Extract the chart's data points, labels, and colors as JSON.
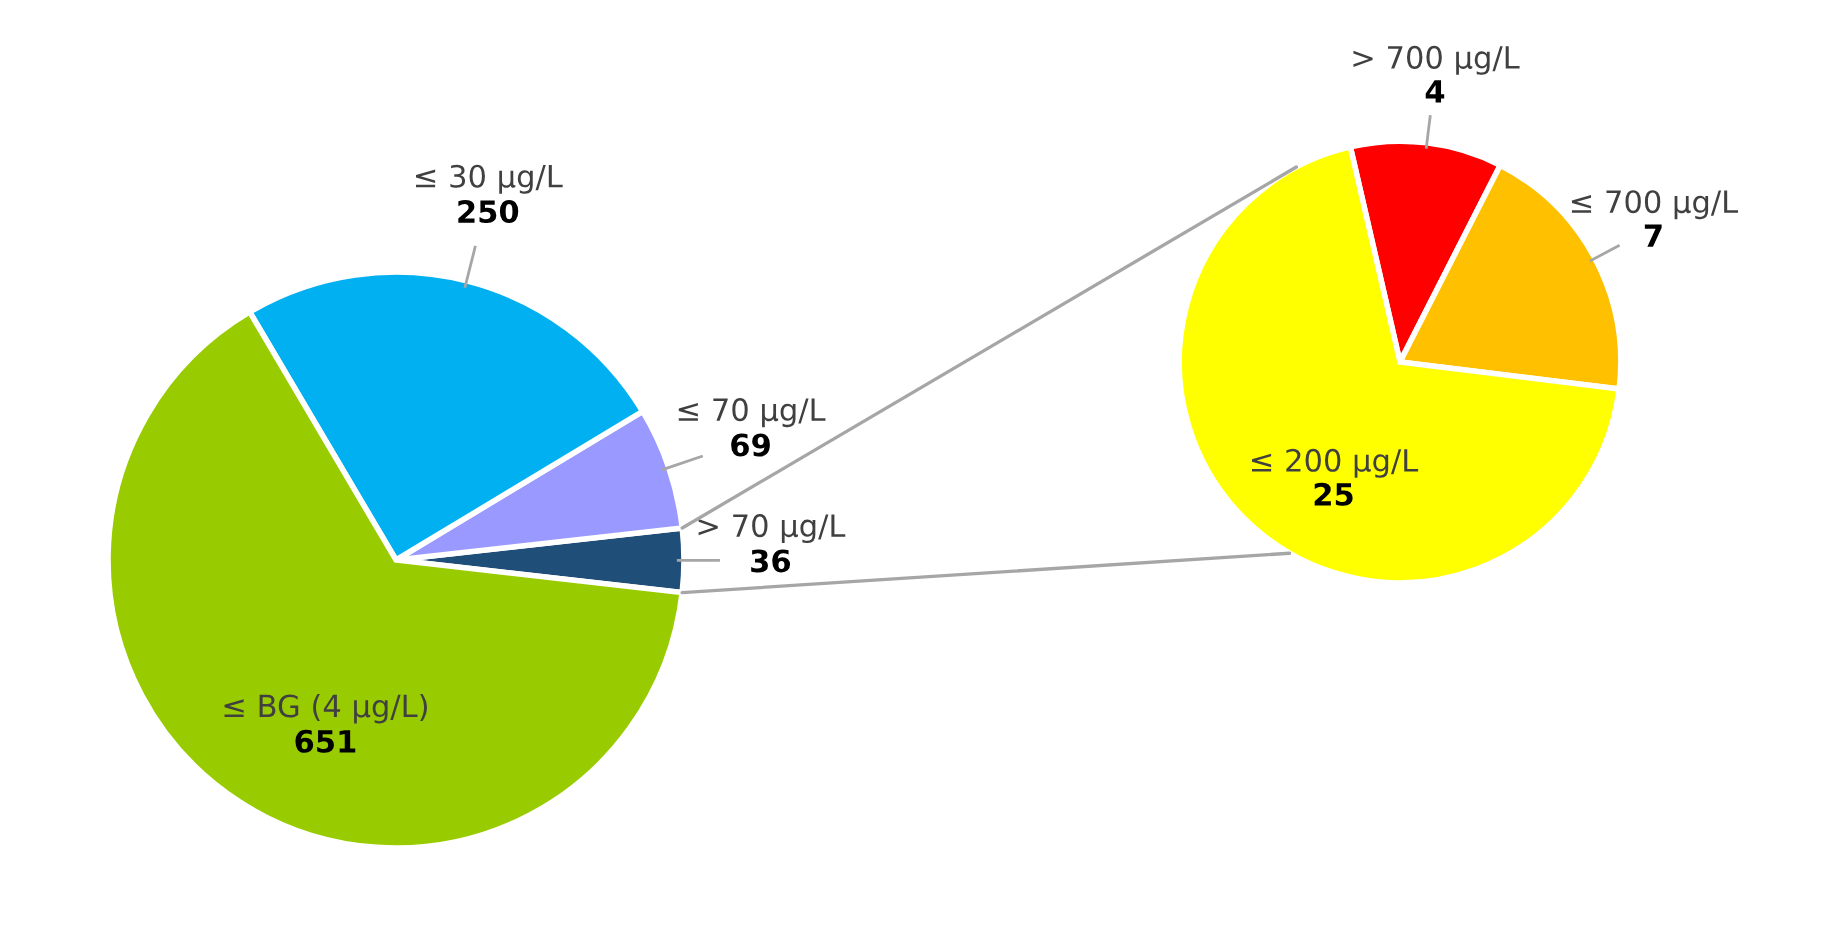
{
  "chart_data": [
    {
      "type": "pie",
      "categories": [
        "> 70 µg/L",
        "≤ 70 µg/L",
        "≤ 30 µg/L",
        "≤ BG (4 µg/L)"
      ],
      "values": [
        36,
        69,
        250,
        651
      ],
      "colors": [
        "#1f4e79",
        "#9999ff",
        "#00b0f0",
        "#99cc00"
      ],
      "data_labels": true
    },
    {
      "type": "pie",
      "categories": [
        "> 700 µg/L",
        "≤ 700 µg/L",
        "≤ 200 µg/L"
      ],
      "values": [
        4,
        7,
        25
      ],
      "colors": [
        "#ff0000",
        "#ffc000",
        "#ffff00"
      ],
      "data_labels": true
    }
  ]
}
